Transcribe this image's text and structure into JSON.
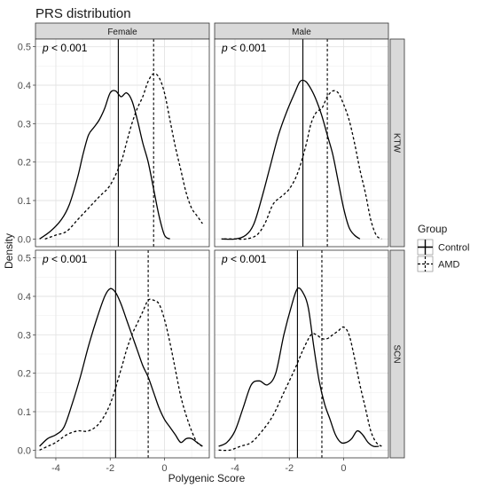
{
  "chart_data": {
    "type": "line",
    "title": "PRS distribution",
    "xlabel": "Polygenic Score",
    "ylabel": "Density",
    "xlim": [
      -4.75,
      1.65
    ],
    "ylim": [
      -0.02,
      0.52
    ],
    "xticks": [
      -4,
      -2,
      0
    ],
    "yticks": [
      0.0,
      0.1,
      0.2,
      0.3,
      0.4,
      0.5
    ],
    "tick_labels_x": [
      "-4",
      "-2",
      "0"
    ],
    "tick_labels_y": [
      "0.0",
      "0.1",
      "0.2",
      "0.3",
      "0.4",
      "0.5"
    ],
    "grid": true,
    "facet_columns": [
      "Female",
      "Male"
    ],
    "facet_rows": [
      "KTW",
      "SCN"
    ],
    "legend": {
      "title": "Group",
      "position": "right",
      "items": [
        {
          "label": "Control",
          "linetype": "solid"
        },
        {
          "label": "AMD",
          "linetype": "dashed"
        }
      ]
    },
    "panels": [
      {
        "column": "Female",
        "row": "KTW",
        "annotation": "p < 0.001",
        "series": [
          {
            "name": "Control",
            "linetype": "solid",
            "vline": -1.7,
            "x": [
              -4.6,
              -4.2,
              -3.8,
              -3.5,
              -3.2,
              -3.0,
              -2.8,
              -2.6,
              -2.4,
              -2.2,
              -2.0,
              -1.8,
              -1.6,
              -1.4,
              -1.2,
              -1.0,
              -0.8,
              -0.6,
              -0.4,
              -0.2,
              0.0,
              0.2
            ],
            "y": [
              0.0,
              0.02,
              0.05,
              0.09,
              0.16,
              0.22,
              0.27,
              0.29,
              0.31,
              0.34,
              0.38,
              0.385,
              0.37,
              0.38,
              0.36,
              0.31,
              0.25,
              0.2,
              0.13,
              0.06,
              0.01,
              0.0
            ]
          },
          {
            "name": "AMD",
            "linetype": "dashed",
            "vline": -0.4,
            "x": [
              -4.4,
              -4.0,
              -3.6,
              -3.2,
              -2.8,
              -2.4,
              -2.0,
              -1.6,
              -1.4,
              -1.2,
              -1.0,
              -0.8,
              -0.6,
              -0.4,
              -0.2,
              0.0,
              0.2,
              0.4,
              0.6,
              0.8,
              1.0,
              1.2,
              1.4
            ],
            "y": [
              0.0,
              0.01,
              0.02,
              0.05,
              0.08,
              0.11,
              0.14,
              0.2,
              0.25,
              0.3,
              0.34,
              0.37,
              0.41,
              0.43,
              0.42,
              0.38,
              0.31,
              0.24,
              0.18,
              0.12,
              0.08,
              0.06,
              0.04
            ]
          }
        ]
      },
      {
        "column": "Male",
        "row": "KTW",
        "annotation": "p < 0.001",
        "series": [
          {
            "name": "Control",
            "linetype": "solid",
            "vline": -1.5,
            "x": [
              -4.5,
              -4.0,
              -3.6,
              -3.3,
              -3.0,
              -2.7,
              -2.4,
              -2.1,
              -1.8,
              -1.6,
              -1.4,
              -1.2,
              -1.0,
              -0.8,
              -0.6,
              -0.4,
              -0.2,
              0.0,
              0.2,
              0.4,
              0.6
            ],
            "y": [
              0.0,
              0.0,
              0.01,
              0.04,
              0.11,
              0.19,
              0.27,
              0.33,
              0.38,
              0.41,
              0.41,
              0.39,
              0.36,
              0.32,
              0.27,
              0.22,
              0.15,
              0.08,
              0.03,
              0.01,
              0.0
            ]
          },
          {
            "name": "AMD",
            "linetype": "dashed",
            "vline": -0.6,
            "x": [
              -4.4,
              -4.0,
              -3.6,
              -3.2,
              -2.9,
              -2.6,
              -2.3,
              -2.0,
              -1.7,
              -1.4,
              -1.2,
              -1.0,
              -0.8,
              -0.6,
              -0.4,
              -0.2,
              0.0,
              0.2,
              0.4,
              0.6,
              0.8,
              1.0,
              1.2,
              1.4
            ],
            "y": [
              0.0,
              0.0,
              0.0,
              0.01,
              0.04,
              0.09,
              0.11,
              0.13,
              0.17,
              0.24,
              0.3,
              0.33,
              0.34,
              0.37,
              0.385,
              0.38,
              0.35,
              0.31,
              0.25,
              0.18,
              0.12,
              0.05,
              0.01,
              0.0
            ]
          }
        ]
      },
      {
        "column": "Female",
        "row": "SCN",
        "annotation": "p < 0.001",
        "series": [
          {
            "name": "Control",
            "linetype": "solid",
            "vline": -1.8,
            "x": [
              -4.6,
              -4.3,
              -4.0,
              -3.7,
              -3.4,
              -3.1,
              -2.8,
              -2.5,
              -2.2,
              -2.0,
              -1.8,
              -1.6,
              -1.4,
              -1.2,
              -1.0,
              -0.8,
              -0.6,
              -0.4,
              -0.2,
              0.0,
              0.2,
              0.4,
              0.6,
              0.8,
              1.0,
              1.2,
              1.4
            ],
            "y": [
              0.01,
              0.03,
              0.04,
              0.06,
              0.12,
              0.19,
              0.27,
              0.34,
              0.4,
              0.42,
              0.41,
              0.38,
              0.34,
              0.3,
              0.26,
              0.22,
              0.19,
              0.15,
              0.11,
              0.08,
              0.06,
              0.04,
              0.02,
              0.03,
              0.03,
              0.02,
              0.01
            ]
          },
          {
            "name": "AMD",
            "linetype": "dashed",
            "vline": -0.6,
            "x": [
              -4.6,
              -4.3,
              -4.0,
              -3.6,
              -3.2,
              -2.8,
              -2.4,
              -2.0,
              -1.6,
              -1.4,
              -1.2,
              -1.0,
              -0.8,
              -0.6,
              -0.4,
              -0.2,
              0.0,
              0.2,
              0.4,
              0.6,
              0.8,
              1.0,
              1.2,
              1.4
            ],
            "y": [
              0.0,
              0.01,
              0.02,
              0.04,
              0.05,
              0.05,
              0.07,
              0.12,
              0.21,
              0.26,
              0.3,
              0.33,
              0.36,
              0.39,
              0.39,
              0.38,
              0.34,
              0.28,
              0.21,
              0.14,
              0.09,
              0.05,
              0.02,
              0.01
            ]
          }
        ]
      },
      {
        "column": "Male",
        "row": "SCN",
        "annotation": "p < 0.001",
        "series": [
          {
            "name": "Control",
            "linetype": "solid",
            "vline": -1.7,
            "x": [
              -4.6,
              -4.3,
              -4.0,
              -3.7,
              -3.4,
              -3.1,
              -2.8,
              -2.5,
              -2.2,
              -1.9,
              -1.7,
              -1.5,
              -1.3,
              -1.1,
              -0.9,
              -0.7,
              -0.5,
              -0.3,
              -0.1,
              0.1,
              0.3,
              0.5,
              0.7,
              0.9,
              1.1,
              1.3
            ],
            "y": [
              0.01,
              0.02,
              0.05,
              0.11,
              0.17,
              0.18,
              0.17,
              0.2,
              0.3,
              0.38,
              0.42,
              0.41,
              0.37,
              0.27,
              0.18,
              0.12,
              0.08,
              0.04,
              0.02,
              0.02,
              0.03,
              0.05,
              0.04,
              0.02,
              0.01,
              0.01
            ]
          },
          {
            "name": "AMD",
            "linetype": "dashed",
            "vline": -0.8,
            "x": [
              -4.6,
              -4.2,
              -3.8,
              -3.4,
              -3.0,
              -2.6,
              -2.2,
              -1.8,
              -1.5,
              -1.2,
              -1.0,
              -0.8,
              -0.6,
              -0.4,
              -0.2,
              0.0,
              0.2,
              0.4,
              0.6,
              0.8,
              1.0,
              1.2,
              1.4
            ],
            "y": [
              0.0,
              0.0,
              0.01,
              0.02,
              0.05,
              0.09,
              0.15,
              0.21,
              0.26,
              0.3,
              0.3,
              0.29,
              0.29,
              0.3,
              0.31,
              0.32,
              0.3,
              0.24,
              0.17,
              0.11,
              0.05,
              0.02,
              0.01
            ]
          }
        ]
      }
    ]
  }
}
